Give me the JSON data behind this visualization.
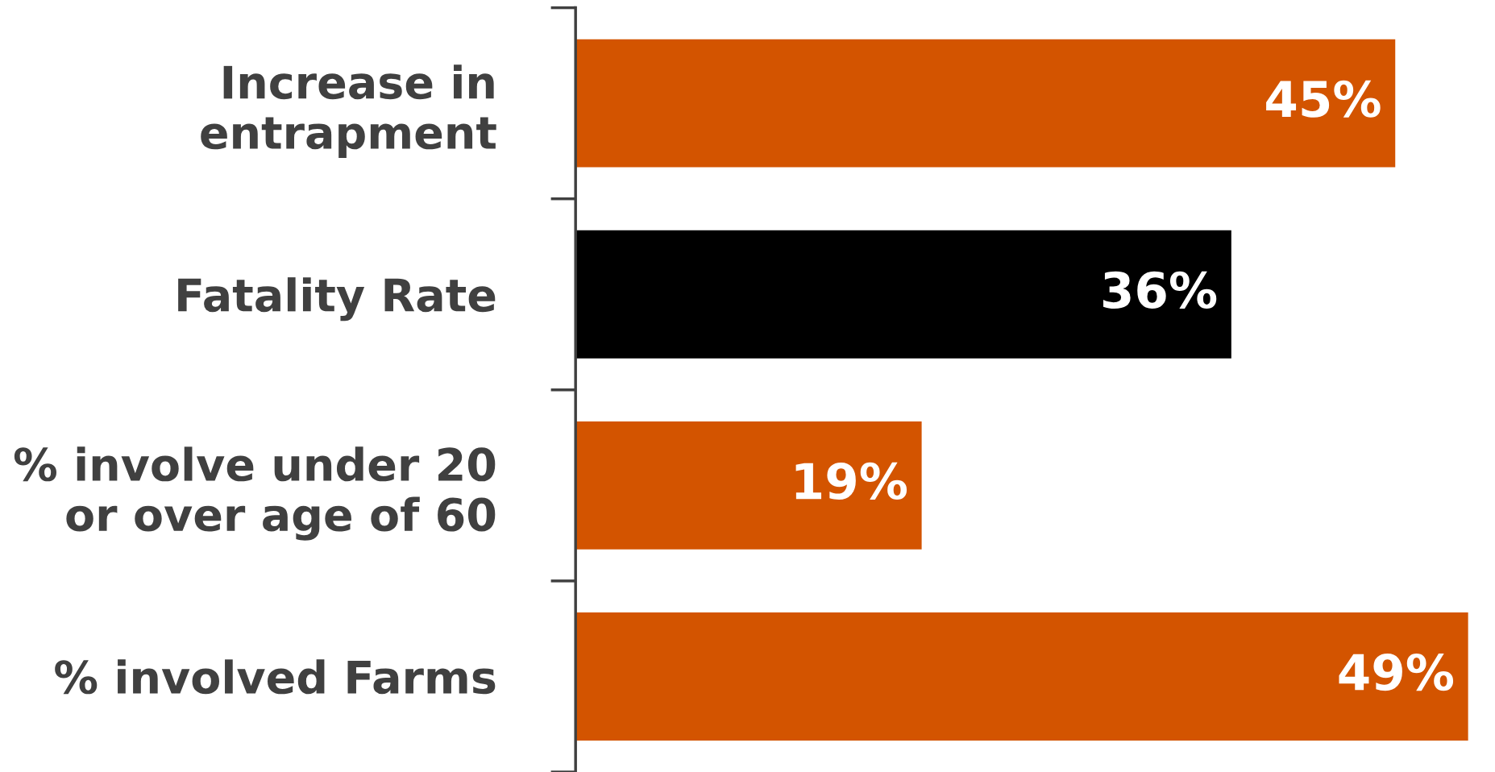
{
  "chart_data": {
    "type": "bar",
    "orientation": "horizontal",
    "categories": [
      "Increase in\nentrapment",
      "Fatality Rate",
      "% involve under 20\nor over age of 60",
      "% involved Farms"
    ],
    "values": [
      45,
      36,
      19,
      49
    ],
    "colors": [
      "#d35400",
      "#000000",
      "#d35400",
      "#d35400"
    ],
    "value_labels": [
      "45%",
      "36%",
      "19%",
      "49%"
    ],
    "tick_labels": "y"
  }
}
